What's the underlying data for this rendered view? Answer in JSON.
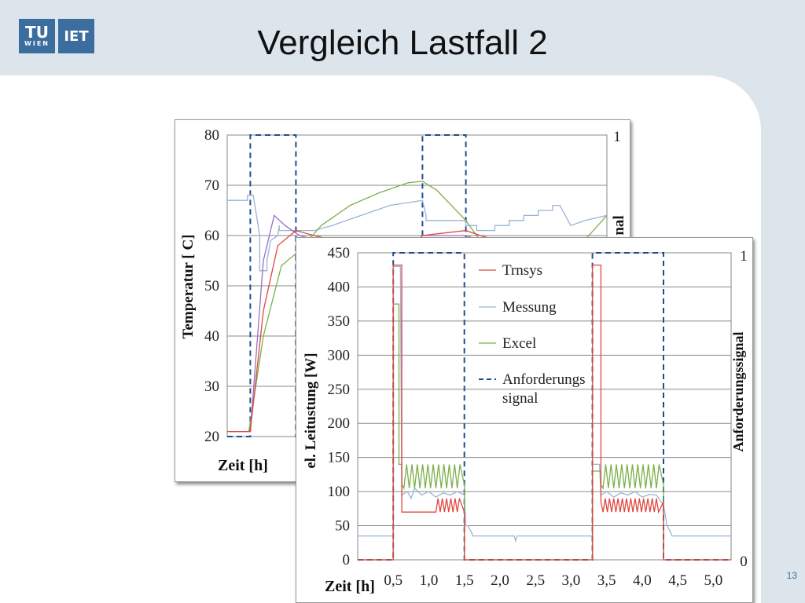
{
  "slide": {
    "title": "Vergleich Lastfall 2",
    "page_number": "13"
  },
  "logos": {
    "tu_top": "TU",
    "tu_bottom": "WIEN",
    "iet": "IET"
  },
  "colors": {
    "trnsys": "#e0473f",
    "messung": "#9ab3d6",
    "excel": "#7ab04a",
    "signal": "#1f4e8c",
    "series4": "#9370c9",
    "accent": "#3b6e9e"
  },
  "chart_data": [
    {
      "type": "line",
      "ylabel": "Temperatur [ C]",
      "xlabel": "Zeit [h]",
      "y2label": "nal",
      "ylim": [
        20,
        80
      ],
      "xlim": [
        0,
        5.25
      ],
      "yticks": [
        20,
        30,
        40,
        50,
        60,
        70,
        80
      ],
      "y2ticks_visible": [
        "1"
      ],
      "grid": true,
      "series": [
        {
          "key": "signal",
          "dashed": true,
          "x": [
            0,
            0.32,
            0.32,
            0.95,
            0.95,
            2.7,
            2.7,
            3.3,
            3.3,
            5.25
          ],
          "y": [
            20,
            20,
            80,
            80,
            20,
            20,
            80,
            80,
            20,
            20
          ]
        },
        {
          "key": "messung",
          "x": [
            0,
            0.28,
            0.28,
            0.36,
            0.45,
            0.45,
            0.55,
            0.55,
            0.6,
            0.7,
            0.72,
            0.72,
            0.95,
            1.2,
            1.2,
            1.45,
            1.45,
            1.65,
            1.65,
            1.85,
            1.85,
            2.05,
            2.05,
            2.25,
            2.25,
            2.7,
            2.7,
            2.75,
            2.75,
            3.3,
            3.3,
            3.45,
            3.45,
            3.7,
            3.7,
            3.9,
            3.9,
            4.1,
            4.1,
            4.3,
            4.3,
            4.5,
            4.5,
            4.55,
            4.6,
            4.75,
            4.75,
            4.95,
            4.95,
            5.25
          ],
          "y": [
            67,
            67,
            68,
            68,
            60,
            53,
            53,
            55,
            59,
            60,
            62,
            61,
            61,
            61,
            61,
            62,
            62,
            63,
            63,
            64,
            64,
            65,
            65,
            66,
            66,
            67,
            67,
            64,
            63,
            63,
            62,
            62,
            61,
            61,
            62,
            62,
            63,
            63,
            64,
            64,
            65,
            65,
            66,
            66,
            66,
            62,
            62,
            63,
            63,
            64
          ]
        },
        {
          "key": "excel",
          "x": [
            0,
            0.3,
            0.5,
            0.75,
            1.0,
            1.3,
            1.7,
            2.1,
            2.5,
            2.7,
            2.9,
            3.3,
            3.6,
            4.0,
            4.4,
            4.75,
            5.25
          ],
          "y": [
            21,
            21,
            40,
            54,
            57,
            62,
            66,
            68.5,
            70.5,
            70.8,
            69,
            63,
            57,
            56,
            55,
            56,
            64
          ]
        },
        {
          "key": "series4",
          "x": [
            0,
            0.32,
            0.5,
            0.65,
            0.8,
            1.0,
            1.5,
            2.0,
            2.5,
            2.7,
            3.3,
            3.5,
            4.0,
            4.5,
            5.25
          ],
          "y": [
            21,
            21,
            55,
            64,
            62,
            60,
            58,
            57,
            57,
            60,
            60,
            59,
            58,
            57,
            56
          ]
        },
        {
          "key": "trnsys",
          "x": [
            0,
            0.32,
            0.5,
            0.7,
            0.95,
            1.2,
            1.5,
            2.0,
            2.5,
            2.7,
            3.3,
            3.5,
            4.0,
            4.5,
            5.25
          ],
          "y": [
            21,
            21,
            45,
            58,
            61,
            60,
            59,
            58,
            57,
            60,
            61,
            60,
            58,
            57,
            56
          ]
        }
      ]
    },
    {
      "type": "line",
      "ylabel": "el. Leitustung [W]",
      "xlabel": "Zeit [h]",
      "y2label": "Anforderungssignal",
      "ylim": [
        0,
        450
      ],
      "xlim": [
        0,
        5.25
      ],
      "yticks": [
        0,
        50,
        100,
        150,
        200,
        250,
        300,
        350,
        400,
        450
      ],
      "xticks": [
        "0,5",
        "1,0",
        "1,5",
        "2,0",
        "2,5",
        "3,0",
        "3,5",
        "4,0",
        "4,5",
        "5,0"
      ],
      "y2ticks": [
        "0",
        "1"
      ],
      "grid": true,
      "legend": [
        {
          "key": "trnsys",
          "label": "Trnsys"
        },
        {
          "key": "messung",
          "label": "Messung"
        },
        {
          "key": "excel",
          "label": "Excel"
        },
        {
          "key": "signal",
          "label": "Anforderungs signal",
          "dashed": true
        }
      ],
      "series": [
        {
          "key": "signal",
          "dashed": true,
          "x": [
            0,
            0.5,
            0.5,
            1.5,
            1.5,
            3.3,
            3.3,
            4.3,
            4.3,
            5.25
          ],
          "y": [
            0,
            0,
            450,
            450,
            0,
            0,
            450,
            450,
            0,
            0
          ]
        },
        {
          "key": "messung",
          "x": [
            0,
            0.5,
            0.5,
            0.6,
            0.62,
            0.7,
            0.75,
            0.8,
            0.9,
            1.0,
            1.1,
            1.2,
            1.3,
            1.4,
            1.5,
            1.52,
            1.55,
            1.6,
            1.62,
            2.2,
            2.22,
            2.24,
            3.3,
            3.3,
            3.4,
            3.42,
            3.5,
            3.6,
            3.7,
            3.8,
            3.9,
            4.0,
            4.1,
            4.2,
            4.3,
            4.35,
            4.4,
            4.42,
            5.25
          ],
          "y": [
            35,
            35,
            430,
            430,
            95,
            100,
            90,
            105,
            95,
            100,
            92,
            98,
            95,
            100,
            95,
            50,
            50,
            40,
            35,
            35,
            28,
            35,
            35,
            140,
            140,
            95,
            100,
            92,
            98,
            95,
            100,
            92,
            96,
            95,
            80,
            50,
            40,
            35,
            35
          ]
        },
        {
          "key": "excel",
          "x": [
            0,
            0.5,
            0.5,
            0.58,
            0.58,
            0.62,
            0.62,
            1.5,
            1.5,
            3.3,
            3.3,
            3.42,
            3.42,
            4.3,
            4.3,
            5.25
          ],
          "y": [
            0,
            0,
            375,
            375,
            140,
            140,
            110,
            110,
            0,
            0,
            130,
            130,
            110,
            110,
            0,
            0
          ],
          "oscillation": {
            "segments": [
              [
                0.65,
                1.45
              ],
              [
                3.45,
                4.25
              ]
            ],
            "low": 105,
            "high": 140,
            "period": 0.075
          }
        },
        {
          "key": "trnsys",
          "x": [
            0,
            0.5,
            0.5,
            0.62,
            0.62,
            1.5,
            1.5,
            3.3,
            3.3,
            3.42,
            3.42,
            4.3,
            4.3,
            5.25
          ],
          "y": [
            0,
            0,
            432,
            432,
            70,
            70,
            0,
            0,
            432,
            432,
            85,
            85,
            0,
            0
          ],
          "oscillation": {
            "segments": [
              [
                1.1,
                1.45
              ],
              [
                3.45,
                4.25
              ]
            ],
            "low": 70,
            "high": 90,
            "period": 0.06
          }
        }
      ]
    }
  ]
}
